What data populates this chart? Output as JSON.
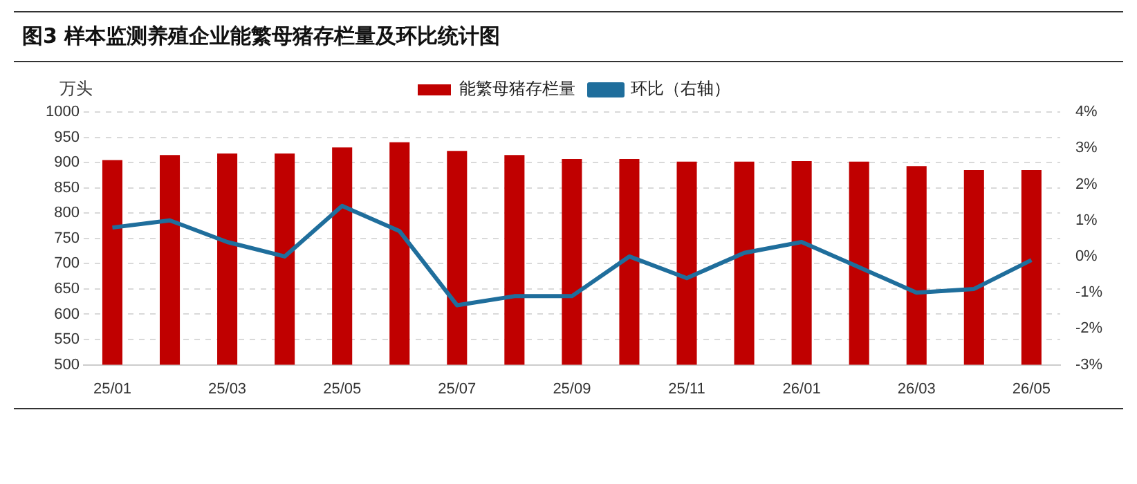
{
  "chart_data": {
    "type": "bar",
    "title": "图3 样本监测养殖企业能繁母猪存栏量及环比统计图",
    "ylabel": "万头",
    "categories": [
      "25/01",
      null,
      "25/03",
      null,
      "25/05",
      null,
      "25/07",
      null,
      "25/09",
      null,
      "25/11",
      null,
      "26/01",
      null,
      "26/03",
      null,
      "26/05"
    ],
    "series": [
      {
        "name": "能繁母猪存栏量",
        "color": "#c00000",
        "values": [
          905,
          915,
          918,
          918,
          930,
          940,
          923,
          915,
          907,
          907,
          902,
          902,
          903,
          902,
          893,
          885,
          885
        ]
      },
      {
        "name": "环比（右轴）",
        "type": "line",
        "axis": "y2",
        "color": "#1f6e9c",
        "values": [
          0.8,
          1.0,
          0.4,
          0.0,
          1.4,
          0.7,
          -1.35,
          -1.1,
          -1.1,
          0.0,
          -0.6,
          0.1,
          0.4,
          -0.3,
          -1.0,
          -0.9,
          -0.1
        ]
      }
    ],
    "ylim": [
      500,
      1000
    ],
    "yticks": [
      500,
      550,
      600,
      650,
      700,
      750,
      800,
      850,
      900,
      950,
      1000
    ],
    "y2lim": [
      -3,
      4
    ],
    "y2ticks": [
      {
        "value": -3,
        "label": "-3%"
      },
      {
        "value": -2,
        "label": "-2%"
      },
      {
        "value": -1,
        "label": "-1%"
      },
      {
        "value": 0,
        "label": "0%"
      },
      {
        "value": 1,
        "label": "1%"
      },
      {
        "value": 2,
        "label": "2%"
      },
      {
        "value": 3,
        "label": "3%"
      },
      {
        "value": 4,
        "label": "4%"
      }
    ],
    "grid": "y",
    "legend": "top",
    "marker": "none",
    "line_style": "solid"
  }
}
